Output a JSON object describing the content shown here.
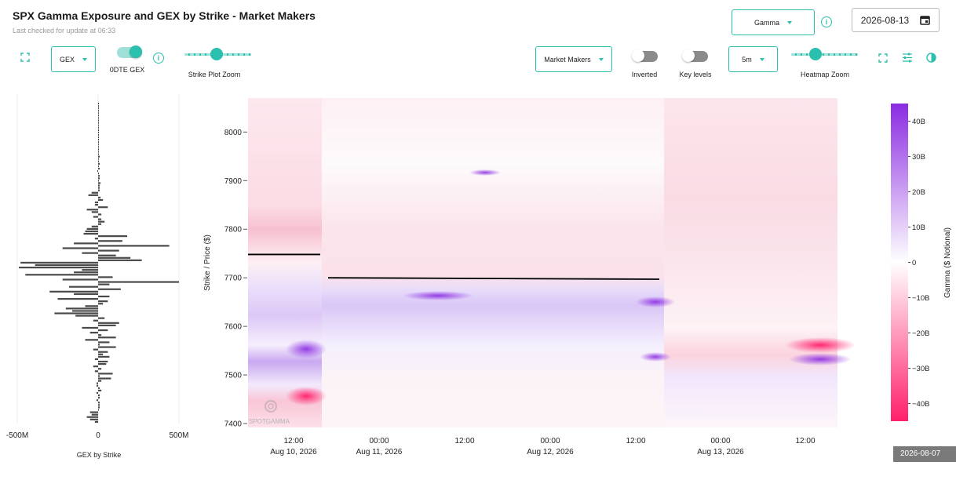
{
  "header": {
    "title": "SPX Gamma Exposure and GEX by Strike - Market Makers",
    "subtitle": "Last checked for update at 06:33"
  },
  "controls": {
    "metric_select": "Gamma",
    "date_value": "2026-08-13",
    "gex_select": "GEX",
    "odte_label": "0DTE GEX",
    "strike_zoom_label": "Strike Plot Zoom",
    "participant_select": "Market Makers",
    "inverted_label": "Inverted",
    "keylevels_label": "Key levels",
    "interval_select": "5m",
    "heatmap_zoom_label": "Heatmap Zoom",
    "info_glyph": "i"
  },
  "icons": {
    "expand": "expand-icon",
    "calendar": "calendar-icon",
    "settings": "sliders-icon",
    "contrast": "contrast-icon"
  },
  "colors": {
    "accent": "#2bbfae",
    "positive": "#8a2be2",
    "negative": "#ff1f6b",
    "bar": "#4a4a4a"
  },
  "watermark": "SPOTGAMMA",
  "footer_date": "2026-08-07",
  "chart_data": [
    {
      "type": "bar",
      "orientation": "horizontal",
      "xlabel": "GEX by Strike",
      "xticks": [
        "-500M",
        "0",
        "500M"
      ],
      "xlim": [
        -500000000,
        500000000
      ],
      "ylim": [
        7400,
        8065
      ],
      "strikes": [
        7715,
        7710,
        7705,
        7700,
        7695,
        7690,
        7685,
        7680,
        7675,
        7670,
        7665,
        7660,
        7655,
        7650,
        7645,
        7640,
        7635,
        7630,
        7625,
        7620,
        7615,
        7610,
        7605,
        7600,
        7595,
        7590,
        7585,
        7580,
        7575,
        7570,
        7565,
        7560,
        7555,
        7550,
        7545,
        7540,
        7535,
        7530,
        7525,
        7520,
        7515,
        7510,
        7505,
        7500,
        7495,
        7490,
        7485,
        7480,
        7475,
        7470,
        7465,
        7460,
        7455,
        7450,
        7445,
        7440,
        7435,
        7430,
        7425,
        7420,
        7415,
        7410,
        7405,
        7400,
        7720,
        7725,
        7730,
        7735,
        7740,
        7745,
        7750,
        7755,
        7760,
        7765,
        7770,
        7775,
        7780,
        7785,
        7790,
        7795,
        7800,
        7805,
        7810,
        7815,
        7820,
        7825,
        7830,
        7835,
        7840,
        7845,
        7850,
        7855,
        7860,
        7865,
        7870,
        7875,
        7880,
        7885,
        7890,
        7895,
        7900,
        7905,
        7910,
        7915,
        7920,
        7925,
        7930,
        7935,
        7940,
        7945,
        7950,
        7955,
        7960,
        7965,
        7970,
        7975,
        7980,
        7985,
        7990,
        7995,
        8000,
        8005,
        8010,
        8015,
        8020,
        8025,
        8030,
        8035,
        8040,
        8045,
        8050,
        8055,
        8060
      ],
      "values": [
        -100000000,
        -150000000,
        -450000000,
        90000000,
        -220000000,
        500000000,
        70000000,
        -180000000,
        140000000,
        -300000000,
        -150000000,
        70000000,
        -250000000,
        60000000,
        30000000,
        -80000000,
        -200000000,
        -160000000,
        -270000000,
        -140000000,
        40000000,
        -30000000,
        130000000,
        110000000,
        -100000000,
        60000000,
        -50000000,
        20000000,
        110000000,
        -80000000,
        70000000,
        10000000,
        110000000,
        -30000000,
        60000000,
        30000000,
        70000000,
        -20000000,
        60000000,
        50000000,
        -30000000,
        20000000,
        -20000000,
        90000000,
        10000000,
        80000000,
        20000000,
        -10000000,
        -10000000,
        10000000,
        20000000,
        -10000000,
        10000000,
        10000000,
        -10000000,
        10000000,
        10000000,
        10000000,
        5000000,
        -50000000,
        -40000000,
        -70000000,
        -50000000,
        -20000000,
        -490000000,
        -390000000,
        -480000000,
        270000000,
        200000000,
        110000000,
        -100000000,
        130000000,
        -220000000,
        440000000,
        -150000000,
        150000000,
        -20000000,
        180000000,
        -90000000,
        -80000000,
        -70000000,
        -40000000,
        20000000,
        40000000,
        20000000,
        -30000000,
        20000000,
        -40000000,
        -70000000,
        60000000,
        -20000000,
        -20000000,
        30000000,
        15000000,
        -60000000,
        -40000000,
        10000000,
        10000000,
        10000000,
        15000000,
        5000000,
        10000000,
        10000000,
        5000000,
        -5000000,
        10000000,
        5000000,
        10000000,
        5000000,
        5000000,
        10000000,
        5000000,
        5000000,
        5000000,
        5000000,
        5000000,
        5000000,
        5000000,
        5000000,
        5000000,
        5000000,
        5000000,
        5000000,
        5000000,
        5000000,
        5000000,
        5000000,
        5000000,
        5000000,
        5000000,
        5000000,
        5000000,
        5000000
      ]
    },
    {
      "type": "heatmap",
      "ylabel": "Strike / Price ($)",
      "yticks": [
        "8000",
        "7900",
        "7800",
        "7700",
        "7600",
        "7500",
        "7400"
      ],
      "ylim": [
        7400,
        8070
      ],
      "xticks": [
        {
          "time": "12:00",
          "date": "Aug 10, 2026"
        },
        {
          "time": "00:00",
          "date": "Aug 11, 2026"
        },
        {
          "time": "12:00",
          "date": ""
        },
        {
          "time": "00:00",
          "date": "Aug 12, 2026"
        },
        {
          "time": "12:00",
          "date": ""
        },
        {
          "time": "00:00",
          "date": "Aug 13, 2026"
        },
        {
          "time": "12:00",
          "date": ""
        }
      ],
      "price_lines": [
        {
          "session": "Aug 10, 2026",
          "price": 7748
        },
        {
          "session": "Aug 11-12, 2026",
          "price_start": 7700,
          "price_end": 7697
        }
      ],
      "colorbar": {
        "label": "Gamma ($ Notional)",
        "ticks": [
          "40B",
          "30B",
          "20B",
          "10B",
          "0",
          "−10B",
          "−20B",
          "−30B",
          "−40B"
        ],
        "range": [
          -45000000000,
          45000000000
        ]
      }
    }
  ]
}
